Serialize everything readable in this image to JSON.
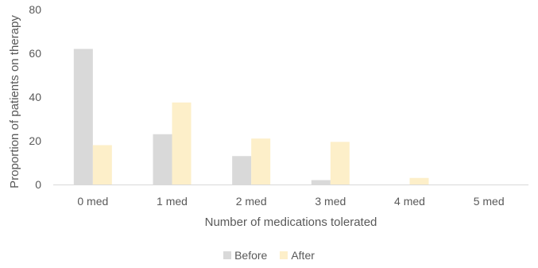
{
  "chart_data": {
    "type": "bar",
    "categories": [
      "0 med",
      "1 med",
      "2 med",
      "3 med",
      "4 med",
      "5 med"
    ],
    "series": [
      {
        "name": "Before",
        "values": [
          62,
          23,
          13,
          2,
          0,
          0
        ],
        "color": "#d9d9d9"
      },
      {
        "name": "After",
        "values": [
          18,
          37.5,
          21,
          19.5,
          3,
          0
        ],
        "color": "#fdefc9"
      }
    ],
    "xlabel": "Number of medications tolerated",
    "ylabel": "Proportion of patients on therapy",
    "ylim": [
      0,
      80
    ],
    "yticks": [
      "0",
      "20",
      "40",
      "60",
      "80"
    ],
    "grid": false,
    "legend_position": "bottom"
  }
}
